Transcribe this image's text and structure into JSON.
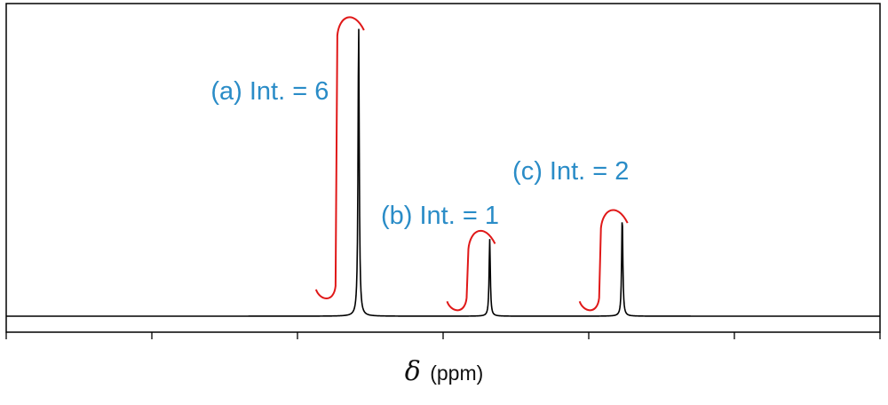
{
  "chart_data": {
    "type": "line",
    "title": "",
    "xlabel_symbol": "δ",
    "xlabel_unit": "(ppm)",
    "ylabel": "",
    "x_ticks": [
      0,
      1,
      2,
      3,
      4,
      5,
      6
    ],
    "xlim": [
      0,
      6
    ],
    "ylim": [
      0,
      1
    ],
    "grid": false,
    "peaks": [
      {
        "x": 2.42,
        "height": 0.99,
        "label": "(a) Int. = 6",
        "integral_start": 0.06,
        "integral_end": 1.0
      },
      {
        "x": 3.32,
        "height": 0.26,
        "label": "(b) Int. = 1",
        "integral_start": 0.02,
        "integral_end": 0.28
      },
      {
        "x": 4.23,
        "height": 0.34,
        "label": "(c) Int. = 2",
        "integral_start": 0.02,
        "integral_end": 0.35
      }
    ],
    "colors": {
      "spectrum": "#000000",
      "integral": "#e01818",
      "label": "#2a8cc7"
    }
  }
}
